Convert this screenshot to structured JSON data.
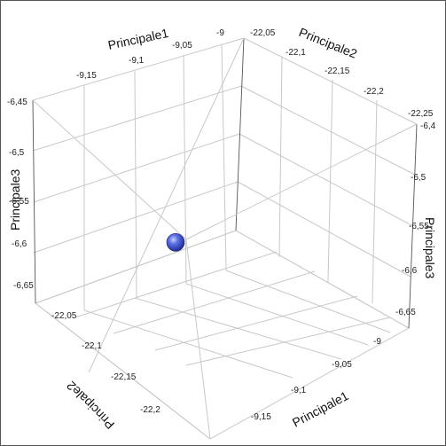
{
  "chart_data": {
    "type": "scatter",
    "dimensions": 3,
    "axes": {
      "x": {
        "label": "Principale1",
        "ticks": [
          "-9,15",
          "-9,1",
          "-9,05",
          "-9"
        ]
      },
      "y": {
        "label": "Principale2",
        "ticks": [
          "-22,2",
          "-22,15",
          "-22,1",
          "-22,05"
        ]
      },
      "z": {
        "label": "Principale3",
        "ticks": [
          "-6,65",
          "-6,6",
          "-6,55",
          "-6,5",
          "-6,45"
        ]
      },
      "x_back": {
        "label": "Principale1",
        "ticks": [
          "-9,15",
          "-9,1",
          "-9,05",
          "-9"
        ]
      },
      "y_back": {
        "label": "Principale2",
        "ticks": [
          "-22,25",
          "-22,2",
          "-22,15",
          "-22,1",
          "-22,05"
        ]
      },
      "z_right": {
        "label": "Principale3",
        "ticks": [
          "-6,4",
          "-6,5",
          "-6,55",
          "-6,6",
          "-6,65"
        ]
      }
    },
    "points": [
      {
        "x": -9.08,
        "y": -22.13,
        "z": -6.56,
        "color": "#3a4fd0"
      }
    ],
    "grid": true
  }
}
